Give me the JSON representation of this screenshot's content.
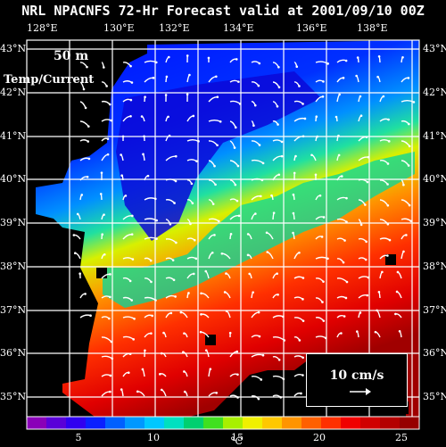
{
  "map": {
    "title": "NRL NPACNFS 72-Hr Forecast valid at 2001/09/10 00Z",
    "depth_label": "50 m",
    "field_label": "Temp/Current",
    "lon_labels": [
      "128°E",
      "130°E",
      "132°E",
      "134°E",
      "136°E",
      "138°E"
    ],
    "lat_labels": [
      "43°N",
      "42°N",
      "41°N",
      "40°N",
      "39°N",
      "38°N",
      "37°N",
      "36°N",
      "35°N"
    ],
    "legend_vector_label": "10 cm/s",
    "colorbar": {
      "ticks": [
        "5",
        "10",
        "15",
        "20",
        "25"
      ],
      "unit": "°C",
      "colors": [
        "#8a00b8",
        "#5a00d8",
        "#3000f0",
        "#0a20ff",
        "#0060ff",
        "#0098ff",
        "#00c8ff",
        "#00e0c0",
        "#00d070",
        "#40e020",
        "#a8f000",
        "#f0f000",
        "#ffc800",
        "#ff9400",
        "#ff6000",
        "#ff3000",
        "#f00000",
        "#d00000",
        "#b40000",
        "#960000"
      ]
    }
  }
}
